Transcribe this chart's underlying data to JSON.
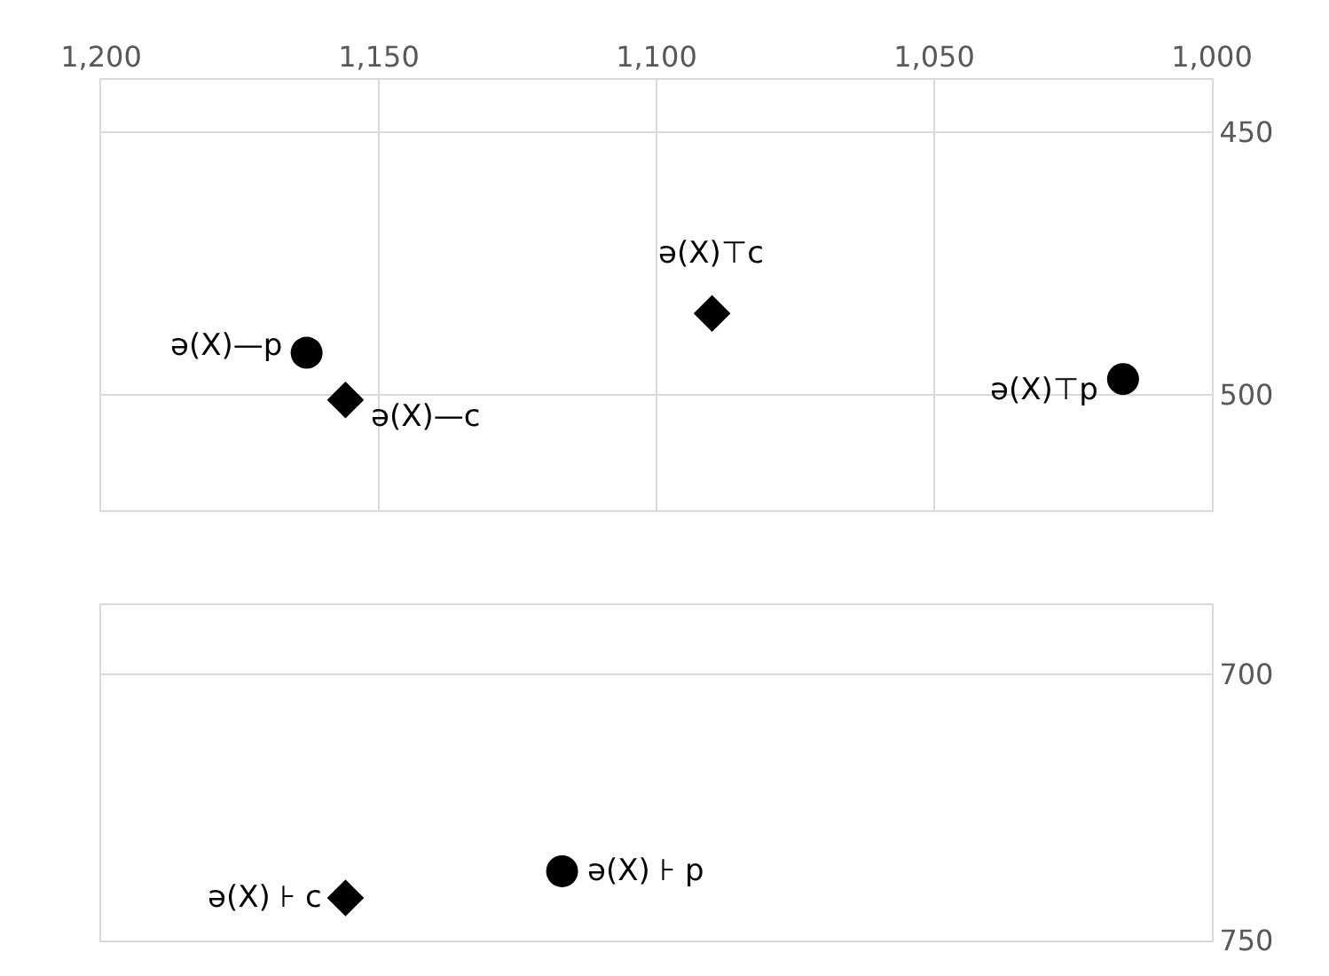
{
  "chart_data": [
    {
      "type": "scatter",
      "xlim": [
        1200,
        1000
      ],
      "xticks": [
        {
          "value": 1200,
          "label": "1,200"
        },
        {
          "value": 1150,
          "label": "1,150"
        },
        {
          "value": 1100,
          "label": "1,100"
        },
        {
          "value": 1050,
          "label": "1,050"
        },
        {
          "value": 1000,
          "label": "1,000"
        }
      ],
      "ylim": [
        522,
        440
      ],
      "yticks": [
        450,
        500
      ],
      "grid": true,
      "series": [
        {
          "color": "#000000",
          "marker": "circle",
          "x": [
            1163,
            1016
          ],
          "values": [
            492,
            497
          ]
        },
        {
          "color": "#000000",
          "marker": "diamond",
          "x": [
            1156,
            1090
          ],
          "values": [
            501,
            484.5
          ]
        }
      ],
      "annotations": [
        {
          "text": "ə(X)—p",
          "x": 1163,
          "y": 492
        },
        {
          "text": "ə(X)—c",
          "x": 1156,
          "y": 501
        },
        {
          "text": "ə(X)⊤c",
          "x": 1090,
          "y": 484.5
        },
        {
          "text": "ə(X)⊤p",
          "x": 1016,
          "y": 497
        }
      ]
    },
    {
      "type": "scatter",
      "xlim": [
        1200,
        1000
      ],
      "ylim": [
        750,
        687
      ],
      "yticks": [
        700,
        750
      ],
      "grid": true,
      "tick_labels": "y",
      "series": [
        {
          "color": "#000000",
          "marker": "circle",
          "x": [
            1117
          ],
          "values": [
            737
          ]
        },
        {
          "color": "#000000",
          "marker": "diamond",
          "x": [
            1156
          ],
          "values": [
            742
          ]
        }
      ],
      "annotations": [
        {
          "text": "ə(X) ⊦ c",
          "x": 1156,
          "y": 742
        },
        {
          "text": "ə(X) ⊦ p",
          "x": 1117,
          "y": 737
        }
      ]
    }
  ]
}
